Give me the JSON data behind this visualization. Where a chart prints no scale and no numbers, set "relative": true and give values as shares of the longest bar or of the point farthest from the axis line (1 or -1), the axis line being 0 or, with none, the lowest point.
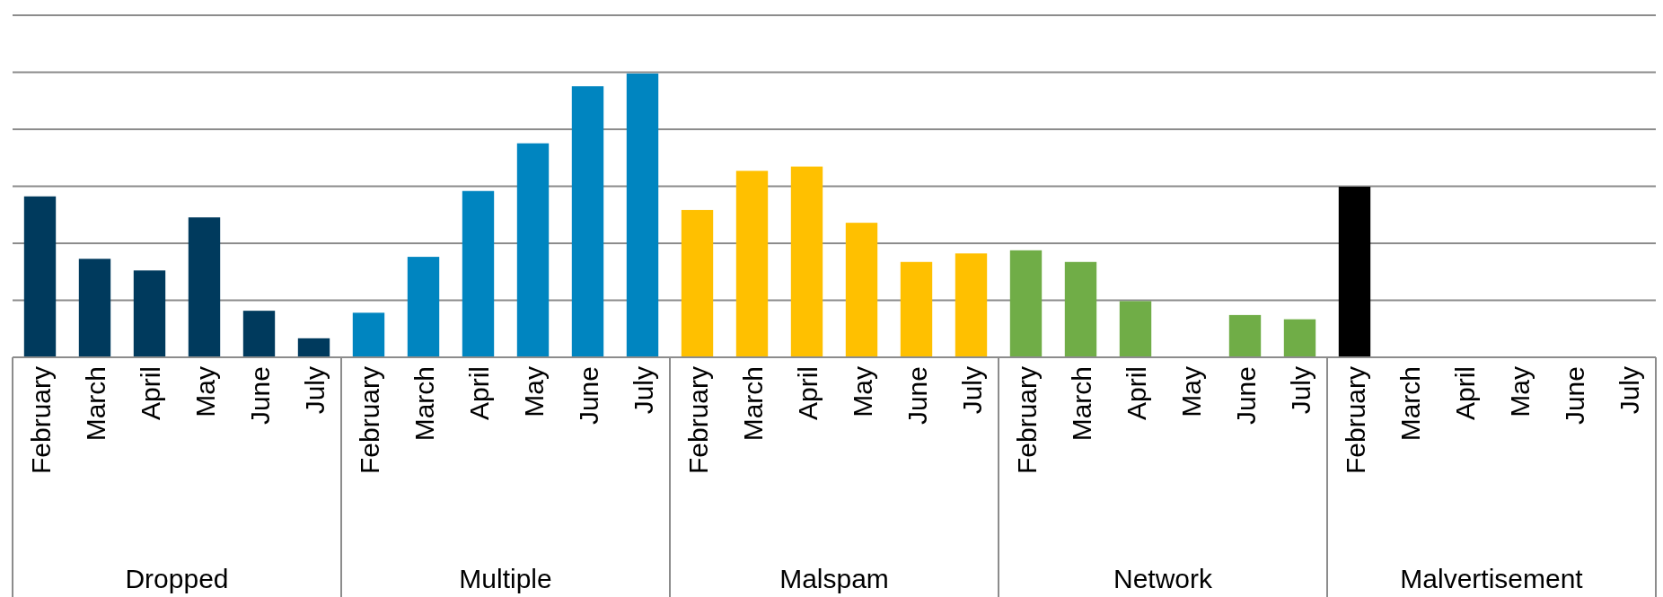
{
  "chart_data": {
    "type": "bar",
    "relative": true,
    "grid": "y",
    "annotations": [
      "Dropped",
      "Multiple",
      "Malspam",
      "Network",
      "Malvertisement"
    ],
    "categories": [
      "February",
      "March",
      "April",
      "May",
      "June",
      "July",
      "February",
      "March",
      "April",
      "May",
      "June",
      "July",
      "February",
      "March",
      "April",
      "May",
      "June",
      "July",
      "February",
      "March",
      "April",
      "May",
      "June",
      "July",
      "February",
      "March",
      "April",
      "May",
      "June",
      "July"
    ],
    "series": [
      {
        "color": "#003a5d",
        "values": [
          0.567,
          0.347,
          0.306,
          0.493,
          0.164,
          0.067,
          null,
          null,
          null,
          null,
          null,
          null,
          null,
          null,
          null,
          null,
          null,
          null,
          null,
          null,
          null,
          null,
          null,
          null,
          null,
          null,
          null,
          null,
          null,
          null
        ]
      },
      {
        "color": "#0085c0",
        "values": [
          null,
          null,
          null,
          null,
          null,
          null,
          0.157,
          0.354,
          0.586,
          0.754,
          0.955,
          1,
          null,
          null,
          null,
          null,
          null,
          null,
          null,
          null,
          null,
          null,
          null,
          null,
          null,
          null,
          null,
          null,
          null,
          null
        ]
      },
      {
        "color": "#ffc000",
        "values": [
          null,
          null,
          null,
          null,
          null,
          null,
          null,
          null,
          null,
          null,
          null,
          null,
          0.519,
          0.657,
          0.672,
          0.474,
          0.336,
          0.366,
          null,
          null,
          null,
          null,
          null,
          null,
          null,
          null,
          null,
          null,
          null,
          null
        ]
      },
      {
        "color": "#70ad47",
        "values": [
          null,
          null,
          null,
          null,
          null,
          null,
          null,
          null,
          null,
          null,
          null,
          null,
          null,
          null,
          null,
          null,
          null,
          null,
          0.377,
          0.336,
          0.198,
          0,
          0.149,
          0.134,
          null,
          null,
          null,
          null,
          null,
          null
        ]
      },
      {
        "color": "#000000",
        "values": [
          null,
          null,
          null,
          null,
          null,
          null,
          null,
          null,
          null,
          null,
          null,
          null,
          null,
          null,
          null,
          null,
          null,
          null,
          null,
          null,
          null,
          null,
          null,
          null,
          0.601,
          0,
          0,
          0,
          0,
          0
        ]
      }
    ]
  }
}
